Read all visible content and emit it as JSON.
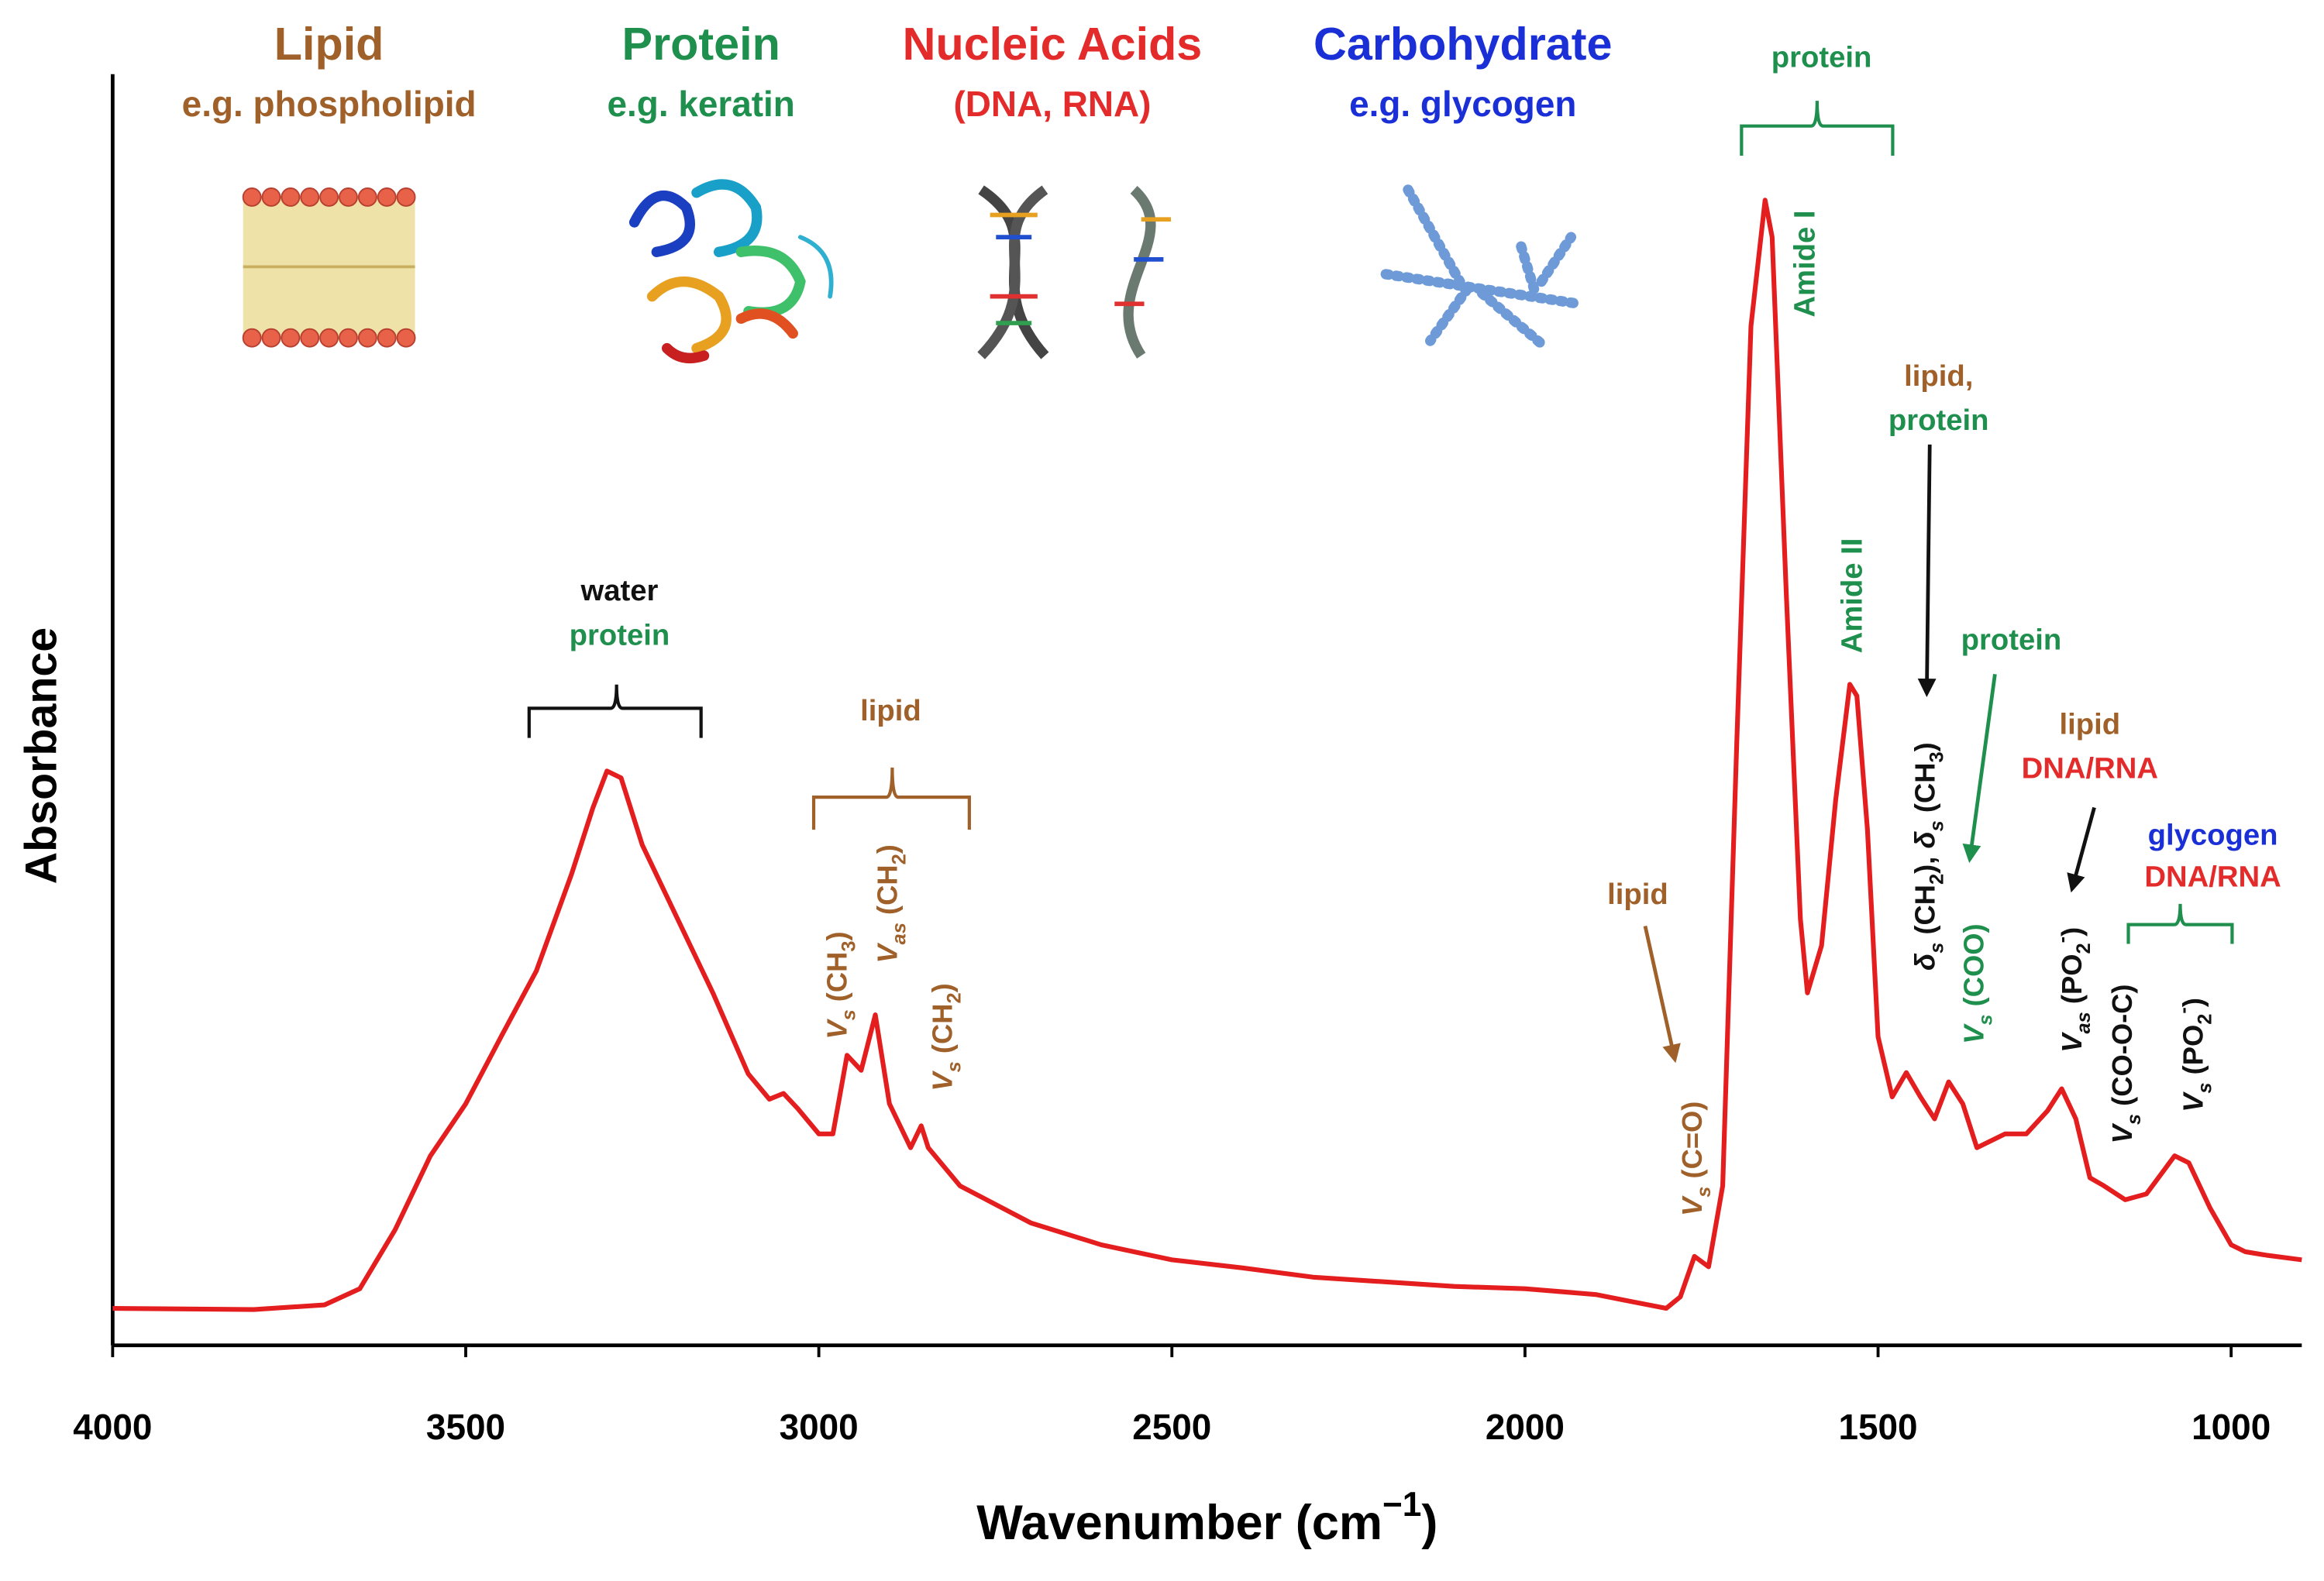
{
  "chart_data": {
    "type": "line",
    "x_label_parts": [
      {
        "text": "Wavenumber (cm"
      },
      {
        "text": "−1",
        "sup": true
      },
      {
        "text": ")"
      }
    ],
    "y_label": "Absorbance",
    "xlim": [
      4000,
      900
    ],
    "xticks": [
      4000,
      3500,
      3000,
      2500,
      2000,
      1500,
      1000
    ],
    "ylim": [
      0,
      1.1
    ],
    "headers": [
      {
        "title": "Lipid",
        "subtitle": "e.g. phospholipid",
        "color": "#a0602a"
      },
      {
        "title": "Protein",
        "subtitle": "e.g. keratin",
        "color": "#1f8f4e"
      },
      {
        "title": "Nucleic Acids",
        "subtitle": "(DNA, RNA)",
        "color": "#e32b2b"
      },
      {
        "title": "Carbohydrate",
        "subtitle": "e.g. glycogen",
        "color": "#1a30d6"
      }
    ],
    "x": [
      4000,
      3800,
      3700,
      3650,
      3600,
      3550,
      3500,
      3450,
      3400,
      3350,
      3320,
      3300,
      3280,
      3250,
      3200,
      3150,
      3100,
      3070,
      3050,
      3030,
      3000,
      2980,
      2960,
      2940,
      2920,
      2900,
      2870,
      2855,
      2845,
      2800,
      2700,
      2600,
      2500,
      2400,
      2300,
      2200,
      2100,
      2000,
      1900,
      1850,
      1800,
      1780,
      1760,
      1740,
      1720,
      1700,
      1680,
      1660,
      1650,
      1630,
      1610,
      1600,
      1580,
      1560,
      1540,
      1530,
      1515,
      1500,
      1480,
      1460,
      1440,
      1420,
      1400,
      1380,
      1360,
      1320,
      1290,
      1260,
      1240,
      1220,
      1200,
      1180,
      1150,
      1120,
      1080,
      1060,
      1030,
      1000,
      980,
      950,
      900
    ],
    "series": [
      {
        "color": "#e41e1e",
        "values": [
          0.032,
          0.031,
          0.035,
          0.049,
          0.1,
          0.164,
          0.209,
          0.267,
          0.324,
          0.408,
          0.465,
          0.497,
          0.491,
          0.433,
          0.369,
          0.305,
          0.235,
          0.213,
          0.218,
          0.205,
          0.183,
          0.183,
          0.251,
          0.238,
          0.286,
          0.209,
          0.171,
          0.19,
          0.171,
          0.138,
          0.106,
          0.087,
          0.074,
          0.067,
          0.059,
          0.055,
          0.051,
          0.049,
          0.044,
          0.038,
          0.032,
          0.042,
          0.077,
          0.068,
          0.138,
          0.523,
          0.882,
          0.991,
          0.959,
          0.651,
          0.369,
          0.305,
          0.346,
          0.472,
          0.572,
          0.562,
          0.446,
          0.267,
          0.215,
          0.236,
          0.215,
          0.196,
          0.228,
          0.209,
          0.171,
          0.183,
          0.183,
          0.203,
          0.222,
          0.196,
          0.145,
          0.138,
          0.126,
          0.131,
          0.164,
          0.158,
          0.119,
          0.087,
          0.081,
          0.078,
          0.074
        ]
      }
    ],
    "annotations": [
      {
        "color": "#111111",
        "parts": [
          {
            "text": "water"
          }
        ]
      },
      {
        "color": "#1f8f4e",
        "parts": [
          {
            "text": "protein"
          }
        ]
      },
      {
        "color": "#a0602a",
        "parts": [
          {
            "text": "lipid"
          }
        ]
      },
      {
        "color": "#a0602a",
        "parts": [
          {
            "text": "V",
            "italic": true
          },
          {
            "text": "s",
            "sub": true,
            "italic": true
          },
          {
            "text": " (CH"
          },
          {
            "text": "3",
            "sub": true
          },
          {
            "text": ")"
          }
        ]
      },
      {
        "color": "#a0602a",
        "parts": [
          {
            "text": "V",
            "italic": true
          },
          {
            "text": "as",
            "sub": true,
            "italic": true
          },
          {
            "text": " (CH"
          },
          {
            "text": "2",
            "sub": true
          },
          {
            "text": ")"
          }
        ]
      },
      {
        "color": "#a0602a",
        "parts": [
          {
            "text": "V",
            "italic": true
          },
          {
            "text": "s",
            "sub": true,
            "italic": true
          },
          {
            "text": " (CH"
          },
          {
            "text": "2",
            "sub": true
          },
          {
            "text": ")"
          }
        ]
      },
      {
        "color": "#a0602a",
        "parts": [
          {
            "text": "lipid"
          }
        ]
      },
      {
        "color": "#a0602a",
        "parts": [
          {
            "text": "V",
            "italic": true
          },
          {
            "text": "s",
            "sub": true,
            "italic": true
          },
          {
            "text": " (C=O)"
          }
        ]
      },
      {
        "color": "#1f8f4e",
        "parts": [
          {
            "text": "protein"
          }
        ]
      },
      {
        "color": "#1f8f4e",
        "parts": [
          {
            "text": "Amide I"
          }
        ]
      },
      {
        "color": "#1f8f4e",
        "parts": [
          {
            "text": "Amide II"
          }
        ]
      },
      {
        "color": "#a0602a",
        "parts": [
          {
            "text": "lipid,"
          }
        ]
      },
      {
        "color": "#1f8f4e",
        "parts": [
          {
            "text": "protein"
          }
        ]
      },
      {
        "color": "#111111",
        "parts": [
          {
            "text": "δ",
            "italic": true
          },
          {
            "text": "s",
            "sub": true,
            "italic": true
          },
          {
            "text": " (CH"
          },
          {
            "text": "2",
            "sub": true
          },
          {
            "text": "), "
          },
          {
            "text": "δ",
            "italic": true
          },
          {
            "text": "s",
            "sub": true,
            "italic": true
          },
          {
            "text": " (CH"
          },
          {
            "text": "3",
            "sub": true
          },
          {
            "text": ")"
          }
        ]
      },
      {
        "color": "#1f8f4e",
        "parts": [
          {
            "text": "protein"
          }
        ]
      },
      {
        "color": "#1f8f4e",
        "parts": [
          {
            "text": "V",
            "italic": true
          },
          {
            "text": "s",
            "sub": true,
            "italic": true
          },
          {
            "text": " (COO)"
          }
        ]
      },
      {
        "color": "#a0602a",
        "parts": [
          {
            "text": "lipid"
          }
        ]
      },
      {
        "color": "#e32b2b",
        "parts": [
          {
            "text": "DNA/RNA"
          }
        ]
      },
      {
        "color": "#111111",
        "parts": [
          {
            "text": "V",
            "italic": true
          },
          {
            "text": "as",
            "sub": true,
            "italic": true
          },
          {
            "text": " (PO"
          },
          {
            "text": "2",
            "sub": true
          },
          {
            "text": "-",
            "sup": true
          },
          {
            "text": ")"
          }
        ]
      },
      {
        "color": "#1a30d6",
        "parts": [
          {
            "text": "glycogen"
          }
        ]
      },
      {
        "color": "#e32b2b",
        "parts": [
          {
            "text": "DNA/RNA"
          }
        ]
      },
      {
        "color": "#111111",
        "parts": [
          {
            "text": "V",
            "italic": true
          },
          {
            "text": "s",
            "sub": true,
            "italic": true
          },
          {
            "text": " (CO-O-C)"
          }
        ]
      },
      {
        "color": "#111111",
        "parts": [
          {
            "text": "V",
            "italic": true
          },
          {
            "text": "s",
            "sub": true,
            "italic": true
          },
          {
            "text": " (PO"
          },
          {
            "text": "2",
            "sub": true
          },
          {
            "text": "-",
            "sup": true
          },
          {
            "text": ")"
          }
        ]
      }
    ]
  }
}
